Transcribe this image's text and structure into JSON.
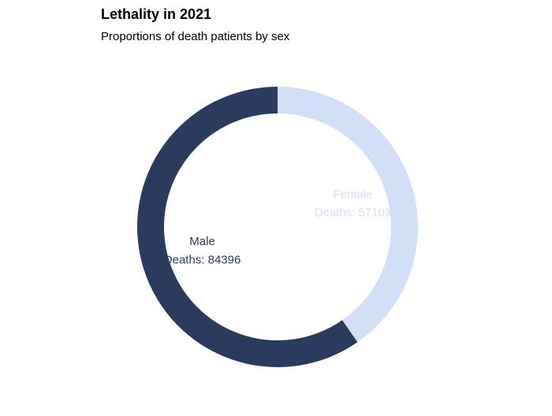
{
  "chart_data": {
    "type": "pie",
    "variant": "donut",
    "title": "Lethality in 2021",
    "subtitle": "Proportions of death patients by sex",
    "slices": [
      {
        "name": "Female",
        "value": 57103,
        "label_prefix": "Deaths: ",
        "color": "#d3dff6"
      },
      {
        "name": "Male",
        "value": 84396,
        "label_prefix": "Deaths: ",
        "color": "#2a3b5e"
      }
    ],
    "start": "top",
    "direction": "clockwise",
    "legend": "none"
  }
}
